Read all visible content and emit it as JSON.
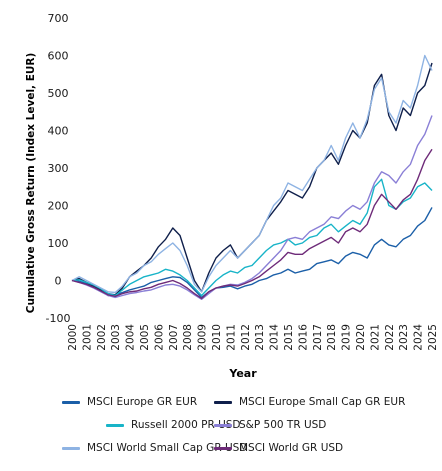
{
  "chart_data": {
    "type": "line",
    "xlabel": "Year",
    "ylabel": "Cumulative Gross Return (Index Level, EUR)",
    "ylim": [
      -100,
      700
    ],
    "yticks": [
      -100,
      0,
      100,
      200,
      300,
      400,
      500,
      600,
      700
    ],
    "xticks": [
      "2000",
      "2001",
      "2002",
      "2003",
      "2004",
      "2005",
      "2006",
      "2007",
      "2008",
      "2009",
      "2010",
      "2011",
      "2012",
      "2013",
      "2014",
      "2015",
      "2016",
      "2017",
      "2018",
      "2019",
      "2020",
      "2021",
      "2022",
      "2023",
      "2024",
      "2025"
    ],
    "xlim": [
      2000,
      2025
    ],
    "grid": false,
    "legend_position": "bottom",
    "series": [
      {
        "name": "MSCI Europe GR EUR",
        "color": "#1b5fa8",
        "x": [
          2000,
          2000.5,
          2001,
          2001.5,
          2002,
          2002.5,
          2003,
          2003.5,
          2004,
          2004.5,
          2005,
          2005.5,
          2006,
          2006.5,
          2007,
          2007.5,
          2008,
          2008.5,
          2009,
          2009.5,
          2010,
          2010.5,
          2011,
          2011.5,
          2012,
          2012.5,
          2013,
          2013.5,
          2014,
          2014.5,
          2015,
          2015.5,
          2016,
          2016.5,
          2017,
          2017.5,
          2018,
          2018.5,
          2019,
          2019.5,
          2020,
          2020.5,
          2021,
          2021.5,
          2022,
          2022.5,
          2023,
          2023.5,
          2024,
          2024.5,
          2025
        ],
        "y": [
          0,
          -2,
          -8,
          -15,
          -25,
          -35,
          -38,
          -32,
          -25,
          -20,
          -15,
          -5,
          0,
          5,
          10,
          8,
          -5,
          -25,
          -45,
          -30,
          -20,
          -18,
          -15,
          -22,
          -15,
          -10,
          0,
          5,
          15,
          20,
          30,
          20,
          25,
          30,
          45,
          50,
          55,
          45,
          65,
          75,
          70,
          60,
          95,
          110,
          95,
          90,
          110,
          120,
          145,
          160,
          195
        ]
      },
      {
        "name": "MSCI Europe Small Cap GR EUR",
        "color": "#0f1f4b",
        "x": [
          2000,
          2000.5,
          2001,
          2001.5,
          2002,
          2002.5,
          2003,
          2003.5,
          2004,
          2004.5,
          2005,
          2005.5,
          2006,
          2006.5,
          2007,
          2007.5,
          2008,
          2008.5,
          2009,
          2009.5,
          2010,
          2010.5,
          2011,
          2011.5,
          2012,
          2012.5,
          2013,
          2013.5,
          2014,
          2014.5,
          2015,
          2015.5,
          2016,
          2016.5,
          2017,
          2017.5,
          2018,
          2018.5,
          2019,
          2019.5,
          2020,
          2020.5,
          2021,
          2021.5,
          2022,
          2022.5,
          2023,
          2023.5,
          2024,
          2024.5,
          2025
        ],
        "y": [
          0,
          5,
          -5,
          -15,
          -25,
          -40,
          -38,
          -20,
          10,
          25,
          40,
          60,
          90,
          110,
          140,
          120,
          60,
          0,
          -30,
          20,
          60,
          80,
          95,
          60,
          80,
          100,
          120,
          160,
          185,
          210,
          240,
          230,
          220,
          250,
          300,
          320,
          340,
          310,
          360,
          400,
          380,
          420,
          520,
          550,
          440,
          400,
          460,
          440,
          500,
          520,
          580
        ]
      },
      {
        "name": "Russell 2000 PR USD",
        "color": "#18b4c8",
        "x": [
          2000,
          2000.5,
          2001,
          2001.5,
          2002,
          2002.5,
          2003,
          2003.5,
          2004,
          2004.5,
          2005,
          2005.5,
          2006,
          2006.5,
          2007,
          2007.5,
          2008,
          2008.5,
          2009,
          2009.5,
          2010,
          2010.5,
          2011,
          2011.5,
          2012,
          2012.5,
          2013,
          2013.5,
          2014,
          2014.5,
          2015,
          2015.5,
          2016,
          2016.5,
          2017,
          2017.5,
          2018,
          2018.5,
          2019,
          2019.5,
          2020,
          2020.5,
          2021,
          2021.5,
          2022,
          2022.5,
          2023,
          2023.5,
          2024,
          2024.5,
          2025
        ],
        "y": [
          0,
          2,
          -5,
          -12,
          -22,
          -35,
          -40,
          -25,
          -10,
          0,
          10,
          15,
          20,
          30,
          25,
          15,
          0,
          -20,
          -40,
          -20,
          0,
          15,
          25,
          20,
          35,
          40,
          60,
          80,
          95,
          100,
          110,
          95,
          100,
          115,
          120,
          140,
          150,
          130,
          145,
          160,
          150,
          180,
          250,
          270,
          200,
          190,
          210,
          220,
          250,
          260,
          240
        ]
      },
      {
        "name": "S&P 500 TR USD",
        "color": "#8a7fd6",
        "x": [
          2000,
          2000.5,
          2001,
          2001.5,
          2002,
          2002.5,
          2003,
          2003.5,
          2004,
          2004.5,
          2005,
          2005.5,
          2006,
          2006.5,
          2007,
          2007.5,
          2008,
          2008.5,
          2009,
          2009.5,
          2010,
          2010.5,
          2011,
          2011.5,
          2012,
          2012.5,
          2013,
          2013.5,
          2014,
          2014.5,
          2015,
          2015.5,
          2016,
          2016.5,
          2017,
          2017.5,
          2018,
          2018.5,
          2019,
          2019.5,
          2020,
          2020.5,
          2021,
          2021.5,
          2022,
          2022.5,
          2023,
          2023.5,
          2024,
          2024.5,
          2025
        ],
        "y": [
          0,
          -5,
          -12,
          -20,
          -30,
          -40,
          -45,
          -40,
          -35,
          -32,
          -28,
          -25,
          -18,
          -12,
          -10,
          -15,
          -25,
          -38,
          -50,
          -35,
          -20,
          -15,
          -10,
          -12,
          -5,
          5,
          20,
          40,
          60,
          80,
          110,
          115,
          110,
          130,
          140,
          150,
          170,
          165,
          185,
          200,
          190,
          210,
          260,
          290,
          280,
          260,
          290,
          310,
          360,
          390,
          440
        ]
      },
      {
        "name": "MSCI World Small Cap GR USD",
        "color": "#8eb3e3",
        "x": [
          2000,
          2000.5,
          2001,
          2001.5,
          2002,
          2002.5,
          2003,
          2003.5,
          2004,
          2004.5,
          2005,
          2005.5,
          2006,
          2006.5,
          2007,
          2007.5,
          2008,
          2008.5,
          2009,
          2009.5,
          2010,
          2010.5,
          2011,
          2011.5,
          2012,
          2012.5,
          2013,
          2013.5,
          2014,
          2014.5,
          2015,
          2015.5,
          2016,
          2016.5,
          2017,
          2017.5,
          2018,
          2018.5,
          2019,
          2019.5,
          2020,
          2020.5,
          2021,
          2021.5,
          2022,
          2022.5,
          2023,
          2023.5,
          2024,
          2024.5,
          2025
        ],
        "y": [
          0,
          10,
          0,
          -10,
          -20,
          -30,
          -32,
          -15,
          10,
          20,
          40,
          50,
          70,
          85,
          100,
          80,
          40,
          -10,
          -30,
          10,
          40,
          60,
          80,
          60,
          80,
          100,
          120,
          160,
          200,
          220,
          260,
          250,
          240,
          270,
          300,
          320,
          360,
          320,
          380,
          420,
          380,
          430,
          510,
          540,
          450,
          420,
          480,
          460,
          520,
          600,
          560
        ]
      },
      {
        "name": "MSCI World GR USD",
        "color": "#6e2b79",
        "x": [
          2000,
          2000.5,
          2001,
          2001.5,
          2002,
          2002.5,
          2003,
          2003.5,
          2004,
          2004.5,
          2005,
          2005.5,
          2006,
          2006.5,
          2007,
          2007.5,
          2008,
          2008.5,
          2009,
          2009.5,
          2010,
          2010.5,
          2011,
          2011.5,
          2012,
          2012.5,
          2013,
          2013.5,
          2014,
          2014.5,
          2015,
          2015.5,
          2016,
          2016.5,
          2017,
          2017.5,
          2018,
          2018.5,
          2019,
          2019.5,
          2020,
          2020.5,
          2021,
          2021.5,
          2022,
          2022.5,
          2023,
          2023.5,
          2024,
          2024.5,
          2025
        ],
        "y": [
          0,
          -5,
          -10,
          -18,
          -28,
          -38,
          -42,
          -35,
          -30,
          -28,
          -22,
          -18,
          -10,
          -5,
          0,
          -8,
          -20,
          -35,
          -48,
          -30,
          -20,
          -15,
          -12,
          -15,
          -8,
          0,
          10,
          25,
          40,
          55,
          75,
          70,
          70,
          85,
          95,
          105,
          115,
          100,
          130,
          140,
          130,
          150,
          200,
          230,
          210,
          190,
          215,
          230,
          270,
          320,
          350
        ]
      }
    ]
  }
}
